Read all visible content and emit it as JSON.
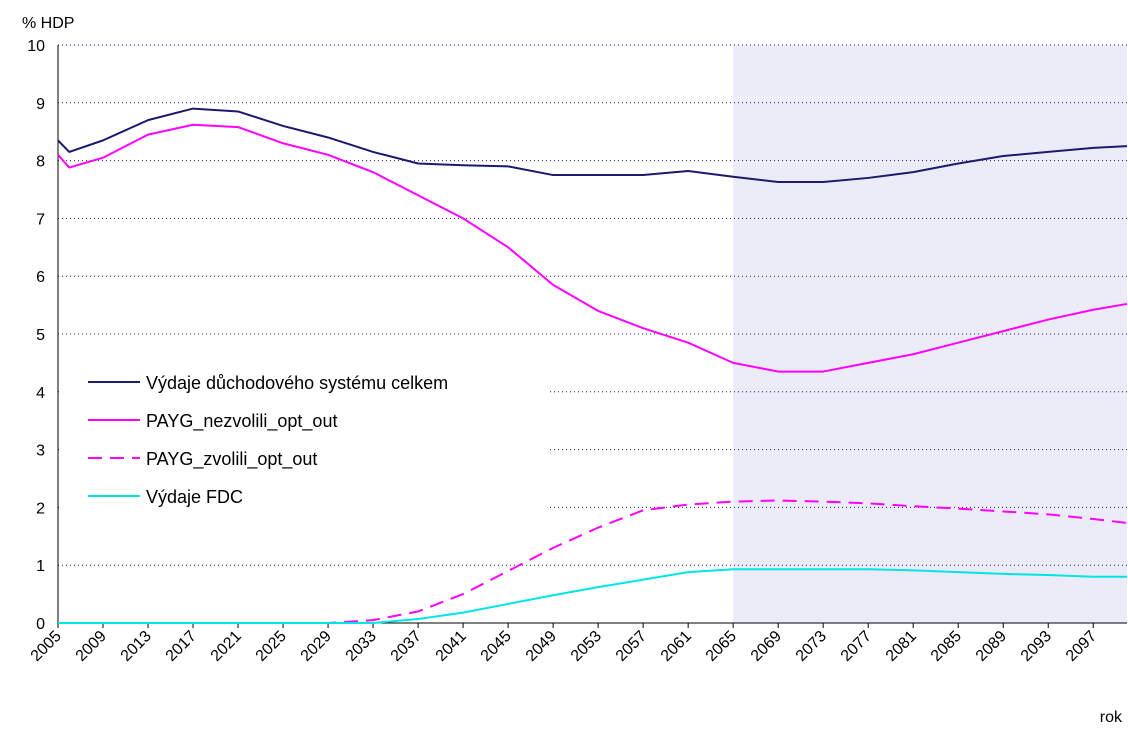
{
  "chart_data": {
    "type": "line",
    "y_label": "% HDP",
    "x_label": "rok",
    "x": [
      2005,
      2006,
      2009,
      2013,
      2017,
      2021,
      2025,
      2029,
      2033,
      2037,
      2041,
      2045,
      2049,
      2053,
      2057,
      2061,
      2065,
      2069,
      2073,
      2077,
      2081,
      2085,
      2089,
      2093,
      2097,
      2100
    ],
    "series": [
      {
        "name": "Výdaje důchodového systému celkem",
        "color": "#1a1a6e",
        "dashed": false,
        "values": [
          8.35,
          8.15,
          8.35,
          8.7,
          8.9,
          8.85,
          8.6,
          8.4,
          8.15,
          7.95,
          7.92,
          7.9,
          7.75,
          7.75,
          7.75,
          7.82,
          7.72,
          7.63,
          7.63,
          7.7,
          7.8,
          7.95,
          8.08,
          8.15,
          8.22,
          8.25
        ]
      },
      {
        "name": "PAYG_nezvolili_opt_out",
        "color": "#ff00ff",
        "dashed": false,
        "values": [
          8.1,
          7.88,
          8.05,
          8.45,
          8.62,
          8.58,
          8.3,
          8.1,
          7.8,
          7.4,
          7.0,
          6.5,
          5.85,
          5.4,
          5.1,
          4.85,
          4.5,
          4.35,
          4.35,
          4.5,
          4.65,
          4.85,
          5.05,
          5.25,
          5.42,
          5.52
        ]
      },
      {
        "name": "PAYG_zvolili_opt_out",
        "color": "#ff00ff",
        "dashed": true,
        "values": [
          0,
          0,
          0,
          0,
          0,
          0,
          0,
          0,
          0.05,
          0.2,
          0.5,
          0.9,
          1.3,
          1.65,
          1.95,
          2.05,
          2.1,
          2.12,
          2.1,
          2.07,
          2.02,
          1.98,
          1.93,
          1.88,
          1.8,
          1.73
        ]
      },
      {
        "name": "Výdaje FDC",
        "color": "#00e5e5",
        "dashed": false,
        "values": [
          0,
          0,
          0,
          0,
          0,
          0,
          0,
          0,
          0,
          0.07,
          0.18,
          0.33,
          0.48,
          0.62,
          0.75,
          0.88,
          0.93,
          0.93,
          0.93,
          0.93,
          0.91,
          0.88,
          0.85,
          0.83,
          0.8,
          0.8
        ]
      }
    ],
    "xlim": [
      2005,
      2100
    ],
    "ylim": [
      0,
      10
    ],
    "xticks": [
      2005,
      2009,
      2013,
      2017,
      2021,
      2025,
      2029,
      2033,
      2037,
      2041,
      2045,
      2049,
      2053,
      2057,
      2061,
      2065,
      2069,
      2073,
      2077,
      2081,
      2085,
      2089,
      2093,
      2097
    ],
    "yticks": [
      0,
      1,
      2,
      3,
      4,
      5,
      6,
      7,
      8,
      9,
      10
    ],
    "grid": true,
    "legend": "left",
    "shaded_from": 2065,
    "shade_color": "#ececf8"
  }
}
